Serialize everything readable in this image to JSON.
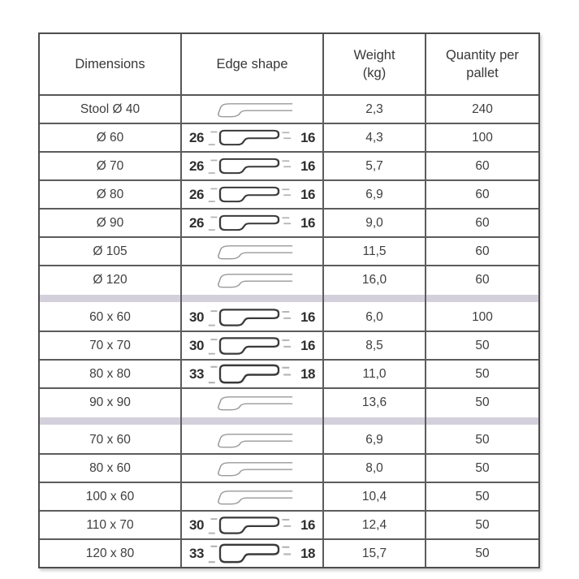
{
  "table": {
    "header": {
      "dimensions": "Dimensions",
      "edge_shape": "Edge shape",
      "weight": "Weight\n(kg)",
      "quantity": "Quantity per\npallet"
    },
    "colors": {
      "border": "#4d4d4d",
      "divider_band": "#d3d0db",
      "text": "#3b3b3b",
      "profile_thin_stroke": "#9a9a9a",
      "profile_thick_stroke": "#3a3a3a"
    },
    "rows": [
      {
        "type": "data",
        "dimensions": "Stool Ø 40",
        "edge_profile": "plain",
        "weight": "2,3",
        "quantity": "240"
      },
      {
        "type": "data",
        "dimensions": "Ø 60",
        "edge_profile": "dimensioned",
        "edge_left": "26",
        "edge_right": "16",
        "weight": "4,3",
        "quantity": "100"
      },
      {
        "type": "data",
        "dimensions": "Ø 70",
        "edge_profile": "dimensioned",
        "edge_left": "26",
        "edge_right": "16",
        "weight": "5,7",
        "quantity": "60"
      },
      {
        "type": "data",
        "dimensions": "Ø 80",
        "edge_profile": "dimensioned",
        "edge_left": "26",
        "edge_right": "16",
        "weight": "6,9",
        "quantity": "60"
      },
      {
        "type": "data",
        "dimensions": "Ø 90",
        "edge_profile": "dimensioned",
        "edge_left": "26",
        "edge_right": "16",
        "weight": "9,0",
        "quantity": "60"
      },
      {
        "type": "data",
        "dimensions": "Ø 105",
        "edge_profile": "plain",
        "weight": "11,5",
        "quantity": "60"
      },
      {
        "type": "data",
        "dimensions": "Ø 120",
        "edge_profile": "plain",
        "weight": "16,0",
        "quantity": "60"
      },
      {
        "type": "divider"
      },
      {
        "type": "data",
        "dimensions": "60 x 60",
        "edge_profile": "dimensioned",
        "edge_left": "30",
        "edge_right": "16",
        "weight": "6,0",
        "quantity": "100"
      },
      {
        "type": "data",
        "dimensions": "70 x 70",
        "edge_profile": "dimensioned",
        "edge_left": "30",
        "edge_right": "16",
        "weight": "8,5",
        "quantity": "50"
      },
      {
        "type": "data",
        "dimensions": "80 x 80",
        "edge_profile": "dimensioned",
        "edge_left": "33",
        "edge_right": "18",
        "weight": "11,0",
        "quantity": "50"
      },
      {
        "type": "data",
        "dimensions": "90 x 90",
        "edge_profile": "plain",
        "weight": "13,6",
        "quantity": "50"
      },
      {
        "type": "divider"
      },
      {
        "type": "data",
        "dimensions": "70 x 60",
        "edge_profile": "plain",
        "weight": "6,9",
        "quantity": "50"
      },
      {
        "type": "data",
        "dimensions": "80 x 60",
        "edge_profile": "plain",
        "weight": "8,0",
        "quantity": "50"
      },
      {
        "type": "data",
        "dimensions": "100 x 60",
        "edge_profile": "plain",
        "weight": "10,4",
        "quantity": "50"
      },
      {
        "type": "data",
        "dimensions": "110 x 70",
        "edge_profile": "dimensioned",
        "edge_left": "30",
        "edge_right": "16",
        "weight": "12,4",
        "quantity": "50"
      },
      {
        "type": "data",
        "dimensions": "120 x 80",
        "edge_profile": "dimensioned",
        "edge_left": "33",
        "edge_right": "18",
        "weight": "15,7",
        "quantity": "50"
      }
    ]
  }
}
